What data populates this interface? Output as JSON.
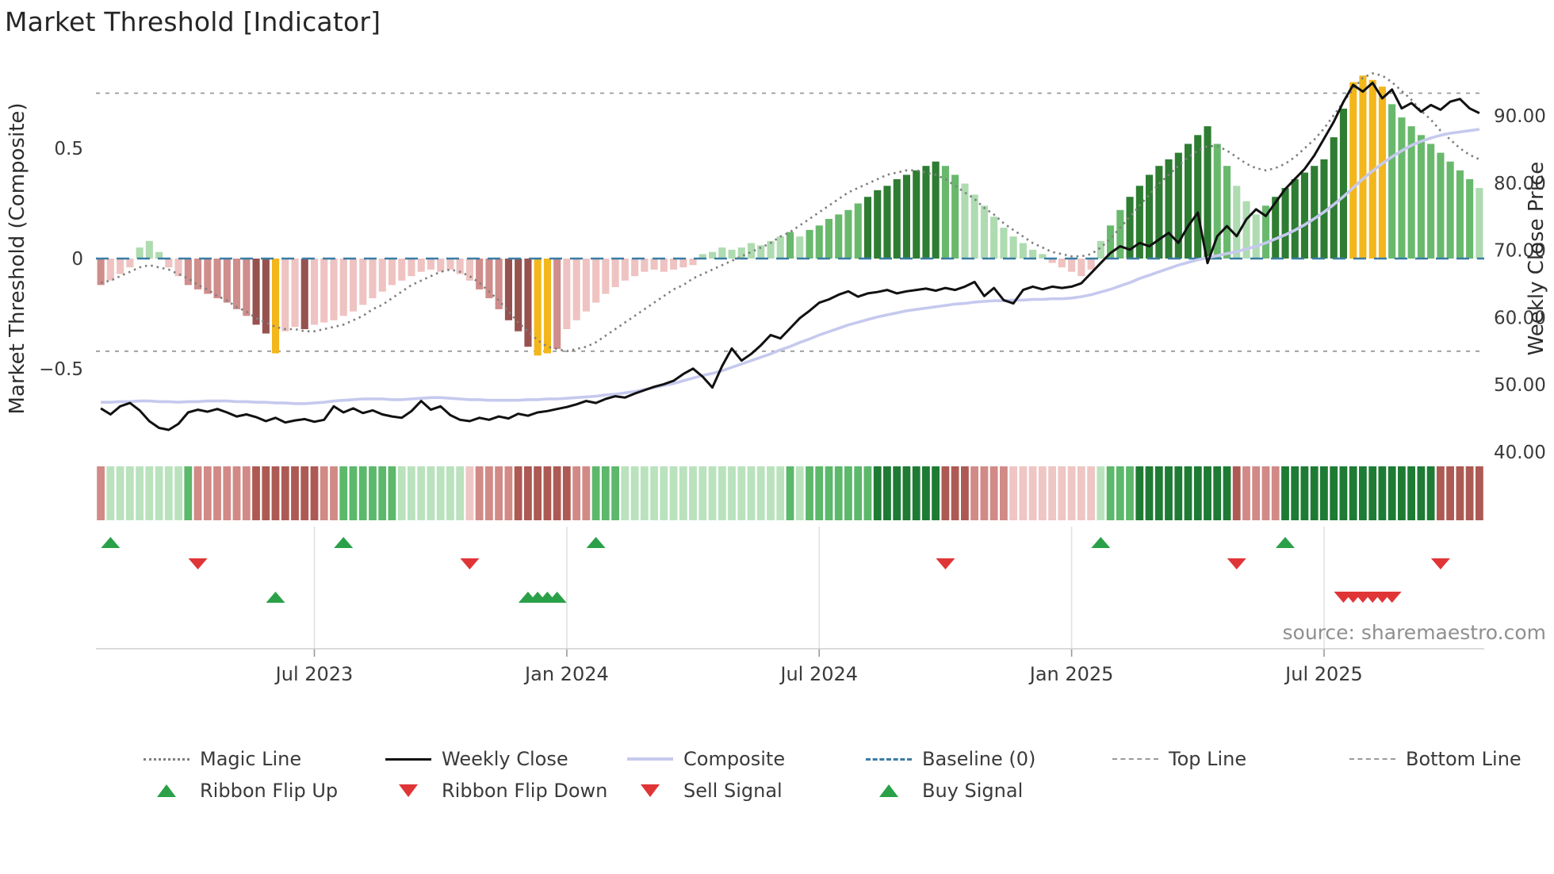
{
  "title": "Market Threshold [Indicator]",
  "source": "source: sharemaestro.com",
  "axes": {
    "left_title": "Market Threshold (Composite)",
    "right_title": "Weekly Close Price",
    "left_ticks": [
      {
        "label": "0.5",
        "value": 0.5
      },
      {
        "label": "0",
        "value": 0
      },
      {
        "label": "−0.5",
        "value": -0.5
      }
    ],
    "right_ticks": [
      {
        "label": "90.00",
        "value": 90
      },
      {
        "label": "80.00",
        "value": 80
      },
      {
        "label": "70.00",
        "value": 70
      },
      {
        "label": "60.00",
        "value": 60
      },
      {
        "label": "50.00",
        "value": 50
      },
      {
        "label": "40.00",
        "value": 40
      }
    ],
    "x_ticks": [
      {
        "label": "Jul 2023",
        "week": 22
      },
      {
        "label": "Jan 2024",
        "week": 48
      },
      {
        "label": "Jul 2024",
        "week": 74
      },
      {
        "label": "Jan 2025",
        "week": 100
      },
      {
        "label": "Jul 2025",
        "week": 126
      }
    ]
  },
  "legend": {
    "row1": [
      {
        "label": "Magic Line",
        "swatch": "dotted-gray"
      },
      {
        "label": "Weekly Close",
        "swatch": "solid-black"
      },
      {
        "label": "Composite",
        "swatch": "solid-lavender"
      },
      {
        "label": "Baseline (0)",
        "swatch": "dashed-blue"
      },
      {
        "label": "Top Line",
        "swatch": "dashed-gray"
      },
      {
        "label": "Bottom Line",
        "swatch": "dashed-gray"
      }
    ],
    "row2": [
      {
        "label": "Ribbon Flip Up",
        "swatch": "tri-up-green"
      },
      {
        "label": "Ribbon Flip Down",
        "swatch": "tri-down-red"
      },
      {
        "label": "Sell Signal",
        "swatch": "tri-down-red"
      },
      {
        "label": "Buy Signal",
        "swatch": "tri-up-green"
      }
    ]
  },
  "colors": {
    "bar_green_dark": "#2e7d32",
    "bar_green": "#69b96d",
    "bar_green_light": "#aedbb0",
    "bar_red_dark": "#96524f",
    "bar_red": "#cf8d8b",
    "bar_red_light": "#eec3c1",
    "gold": "#f3b71c",
    "weekly_close": "#111111",
    "composite": "#c6c9ee",
    "magic": "#7f7f7f",
    "baseline": "#3a7ca5",
    "guide": "#9a9a9a",
    "signal_green": "#2aa148",
    "signal_red": "#e03537",
    "ribbon_green_dark": "#1e7b34",
    "ribbon_green": "#5cb86b",
    "ribbon_green_light": "#b9e2bd",
    "ribbon_red_dark": "#ad5a54",
    "ribbon_red": "#d18a86",
    "ribbon_red_light": "#eec6c3"
  },
  "chart_data": {
    "type": "mixed",
    "series_types": {
      "threshold_bars": "bar",
      "magic_line": "line-dotted",
      "weekly_close": "line",
      "composite": "line"
    },
    "weeks": 143,
    "legend_position": "bottom",
    "left_axis_range": [
      -0.9,
      0.89
    ],
    "right_axis_range": [
      39,
      97.8
    ],
    "baseline": 0,
    "top_line": 0.75,
    "bottom_line": -0.42,
    "threshold_bars": [
      -0.12,
      -0.1,
      -0.07,
      -0.04,
      0.05,
      0.08,
      0.03,
      -0.04,
      -0.08,
      -0.12,
      -0.14,
      -0.16,
      -0.18,
      -0.2,
      -0.23,
      -0.26,
      -0.3,
      -0.34,
      -0.43,
      -0.33,
      -0.31,
      -0.32,
      -0.3,
      -0.29,
      -0.28,
      -0.26,
      -0.24,
      -0.21,
      -0.18,
      -0.15,
      -0.12,
      -0.1,
      -0.08,
      -0.06,
      -0.05,
      -0.06,
      -0.05,
      -0.07,
      -0.1,
      -0.14,
      -0.18,
      -0.23,
      -0.28,
      -0.33,
      -0.4,
      -0.44,
      -0.43,
      -0.41,
      -0.32,
      -0.28,
      -0.24,
      -0.2,
      -0.16,
      -0.13,
      -0.1,
      -0.08,
      -0.06,
      -0.05,
      -0.06,
      -0.05,
      -0.04,
      -0.03,
      0.02,
      0.03,
      0.05,
      0.04,
      0.05,
      0.07,
      0.06,
      0.08,
      0.1,
      0.12,
      0.1,
      0.13,
      0.15,
      0.18,
      0.2,
      0.22,
      0.25,
      0.28,
      0.31,
      0.33,
      0.36,
      0.38,
      0.4,
      0.42,
      0.44,
      0.42,
      0.38,
      0.34,
      0.29,
      0.24,
      0.19,
      0.14,
      0.1,
      0.07,
      0.04,
      0.02,
      -0.02,
      -0.04,
      -0.06,
      -0.08,
      -0.05,
      0.08,
      0.15,
      0.22,
      0.28,
      0.33,
      0.38,
      0.42,
      0.45,
      0.48,
      0.52,
      0.56,
      0.6,
      0.52,
      0.42,
      0.33,
      0.26,
      0.2,
      0.24,
      0.28,
      0.32,
      0.36,
      0.39,
      0.42,
      0.45,
      0.55,
      0.68,
      0.8,
      0.83,
      0.81,
      0.78,
      0.7,
      0.64,
      0.6,
      0.56,
      0.52,
      0.48,
      0.44,
      0.4,
      0.36,
      0.32
    ],
    "magic_line": [
      -0.11,
      -0.1,
      -0.08,
      -0.06,
      -0.04,
      -0.03,
      -0.04,
      -0.05,
      -0.07,
      -0.09,
      -0.12,
      -0.14,
      -0.17,
      -0.19,
      -0.22,
      -0.24,
      -0.27,
      -0.29,
      -0.31,
      -0.32,
      -0.32,
      -0.33,
      -0.33,
      -0.32,
      -0.31,
      -0.3,
      -0.28,
      -0.26,
      -0.23,
      -0.21,
      -0.18,
      -0.15,
      -0.12,
      -0.1,
      -0.08,
      -0.06,
      -0.05,
      -0.06,
      -0.08,
      -0.11,
      -0.15,
      -0.19,
      -0.24,
      -0.29,
      -0.33,
      -0.37,
      -0.4,
      -0.41,
      -0.42,
      -0.41,
      -0.4,
      -0.38,
      -0.35,
      -0.32,
      -0.29,
      -0.26,
      -0.23,
      -0.2,
      -0.17,
      -0.14,
      -0.12,
      -0.09,
      -0.07,
      -0.05,
      -0.03,
      -0.01,
      0.01,
      0.03,
      0.05,
      0.07,
      0.1,
      0.12,
      0.15,
      0.18,
      0.21,
      0.24,
      0.27,
      0.3,
      0.32,
      0.34,
      0.36,
      0.38,
      0.39,
      0.4,
      0.4,
      0.39,
      0.38,
      0.36,
      0.33,
      0.3,
      0.27,
      0.23,
      0.2,
      0.16,
      0.13,
      0.1,
      0.07,
      0.05,
      0.03,
      0.02,
      0.01,
      0.01,
      0.02,
      0.05,
      0.09,
      0.14,
      0.19,
      0.24,
      0.29,
      0.34,
      0.38,
      0.42,
      0.46,
      0.49,
      0.51,
      0.51,
      0.49,
      0.46,
      0.43,
      0.41,
      0.4,
      0.41,
      0.43,
      0.46,
      0.5,
      0.54,
      0.59,
      0.65,
      0.71,
      0.77,
      0.82,
      0.84,
      0.83,
      0.8,
      0.76,
      0.72,
      0.67,
      0.63,
      0.58,
      0.54,
      0.5,
      0.47,
      0.45
    ],
    "weekly_close": [
      46.5,
      45.6,
      46.8,
      47.3,
      46.2,
      44.6,
      43.6,
      43.3,
      44.2,
      45.9,
      46.3,
      46.0,
      46.4,
      45.9,
      45.3,
      45.6,
      45.2,
      44.6,
      45.1,
      44.4,
      44.7,
      44.9,
      44.5,
      44.8,
      46.8,
      45.9,
      46.5,
      45.8,
      46.2,
      45.6,
      45.3,
      45.1,
      46.1,
      47.6,
      46.3,
      46.8,
      45.5,
      44.8,
      44.6,
      45.1,
      44.8,
      45.3,
      45.0,
      45.7,
      45.4,
      45.9,
      46.1,
      46.4,
      46.7,
      47.1,
      47.6,
      47.3,
      47.9,
      48.3,
      48.1,
      48.7,
      49.2,
      49.7,
      50.1,
      50.6,
      51.6,
      52.4,
      51.2,
      49.6,
      52.8,
      55.4,
      53.6,
      54.6,
      55.9,
      57.4,
      56.9,
      58.4,
      59.9,
      61.0,
      62.2,
      62.7,
      63.4,
      63.9,
      63.1,
      63.6,
      63.8,
      64.1,
      63.6,
      63.9,
      64.1,
      64.3,
      64.0,
      64.4,
      64.1,
      64.6,
      65.3,
      63.2,
      64.4,
      62.6,
      62.1,
      64.1,
      64.6,
      64.2,
      64.6,
      64.4,
      64.6,
      65.1,
      66.6,
      68.1,
      69.6,
      70.6,
      70.1,
      71.1,
      70.6,
      71.6,
      72.6,
      71.1,
      73.6,
      75.6,
      68.1,
      72.1,
      73.6,
      72.1,
      74.6,
      76.1,
      75.1,
      77.1,
      79.1,
      80.6,
      82.1,
      84.1,
      86.6,
      89.1,
      92.1,
      94.6,
      93.6,
      94.9,
      92.6,
      93.9,
      91.1,
      91.9,
      90.6,
      91.6,
      90.9,
      92.1,
      92.5,
      91.1,
      90.4
    ],
    "composite": [
      47.4,
      47.4,
      47.5,
      47.5,
      47.6,
      47.6,
      47.5,
      47.5,
      47.4,
      47.5,
      47.5,
      47.6,
      47.6,
      47.6,
      47.5,
      47.5,
      47.4,
      47.4,
      47.3,
      47.3,
      47.2,
      47.2,
      47.3,
      47.4,
      47.6,
      47.7,
      47.8,
      47.9,
      47.9,
      47.9,
      47.8,
      47.8,
      47.9,
      48.0,
      48.1,
      48.1,
      48.0,
      47.9,
      47.8,
      47.8,
      47.7,
      47.7,
      47.7,
      47.7,
      47.8,
      47.8,
      47.9,
      47.9,
      48.0,
      48.1,
      48.2,
      48.3,
      48.5,
      48.6,
      48.8,
      49.0,
      49.3,
      49.6,
      49.9,
      50.2,
      50.6,
      51.0,
      51.4,
      51.7,
      52.1,
      52.6,
      53.1,
      53.6,
      54.1,
      54.6,
      55.2,
      55.7,
      56.3,
      56.8,
      57.4,
      57.9,
      58.4,
      58.9,
      59.3,
      59.7,
      60.1,
      60.4,
      60.7,
      61.0,
      61.2,
      61.4,
      61.6,
      61.8,
      62.0,
      62.1,
      62.3,
      62.4,
      62.5,
      62.5,
      62.6,
      62.6,
      62.7,
      62.7,
      62.8,
      62.8,
      62.9,
      63.1,
      63.4,
      63.8,
      64.2,
      64.7,
      65.2,
      65.8,
      66.3,
      66.8,
      67.3,
      67.8,
      68.2,
      68.6,
      68.9,
      69.2,
      69.5,
      69.8,
      70.2,
      70.6,
      71.1,
      71.7,
      72.3,
      73.0,
      73.8,
      74.7,
      75.7,
      76.8,
      78.0,
      79.3,
      80.6,
      81.8,
      82.9,
      83.9,
      84.8,
      85.6,
      86.2,
      86.7,
      87.1,
      87.4,
      87.6,
      87.8,
      88.0
    ],
    "ribbon_flip_up_weeks": [
      1,
      25,
      51,
      103,
      122
    ],
    "ribbon_flip_down_weeks": [
      10,
      38,
      87,
      117,
      138
    ],
    "buy_signal_weeks": [
      18,
      44,
      45,
      46,
      47
    ],
    "sell_signal_weeks": [
      128,
      129,
      130,
      131,
      132,
      133
    ]
  }
}
